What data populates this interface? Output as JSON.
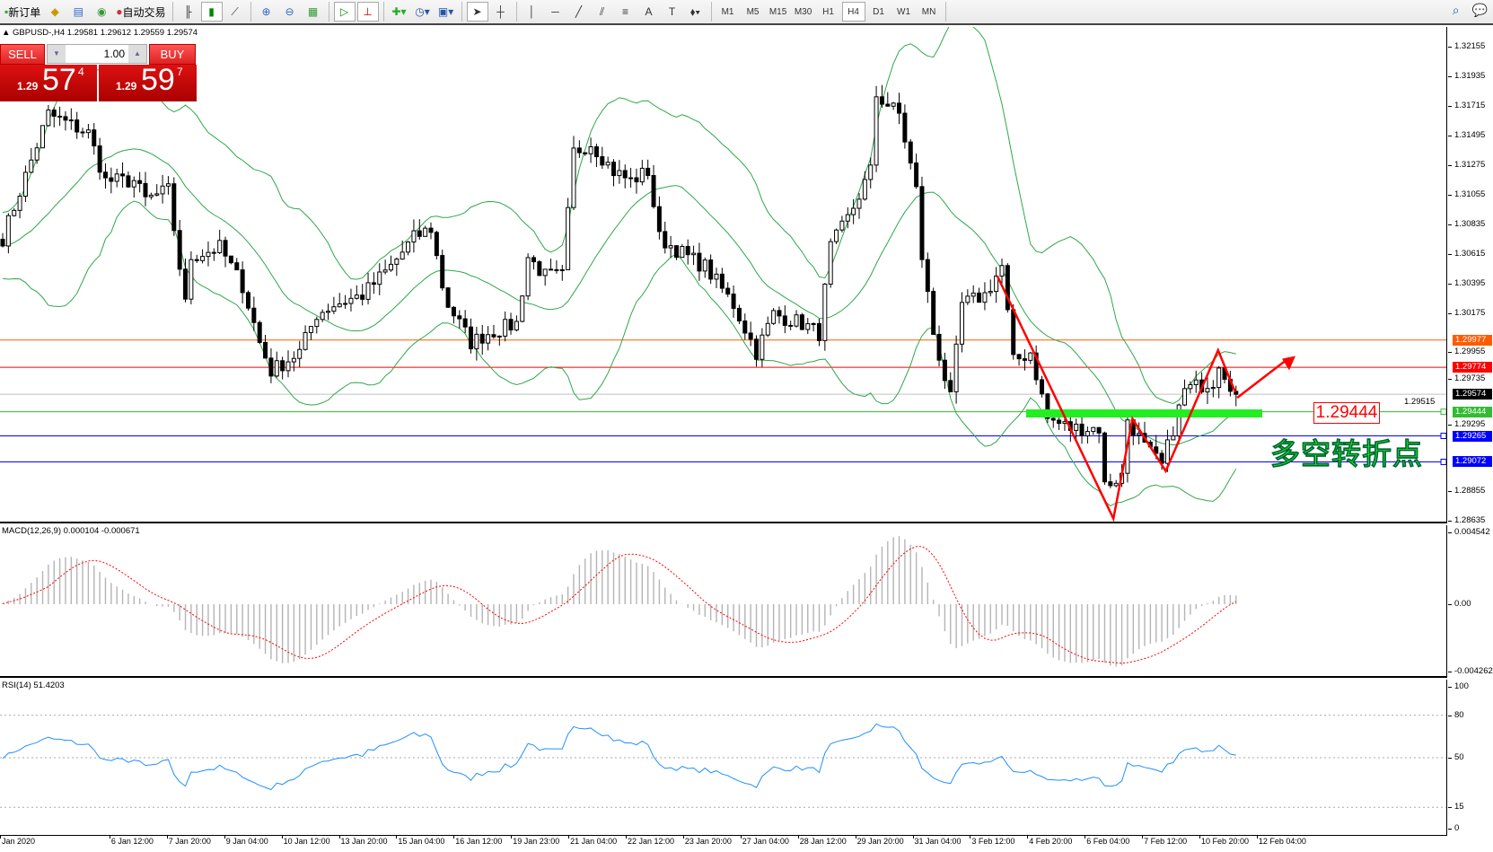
{
  "toolbar": {
    "new_order": "新订单",
    "auto_trading": "自动交易",
    "icons": [
      "metaeditor-icon",
      "market-watch-icon",
      "signals-icon",
      "bar-chart-icon",
      "candlestick-icon",
      "line-chart-icon",
      "zoom-in-icon",
      "zoom-out-icon",
      "tile-windows-icon",
      "auto-scroll-icon",
      "chart-shift-icon",
      "indicators-icon",
      "period-icon",
      "templates-icon",
      "cursor-icon",
      "crosshair-icon",
      "vertical-line-icon",
      "horizontal-line-icon",
      "trendline-icon",
      "equidistant-channel-icon",
      "fibonacci-icon",
      "text-icon",
      "text-label-icon",
      "arrows-icon"
    ],
    "timeframes": [
      "M1",
      "M5",
      "M15",
      "M30",
      "H1",
      "H4",
      "D1",
      "W1",
      "MN"
    ],
    "active_timeframe": "H4"
  },
  "chart": {
    "header": "GBPUSD-,H4  1.29581 1.29612 1.29559 1.29574",
    "trade_panel": {
      "sell_label": "SELL",
      "buy_label": "BUY",
      "volume": "1.00",
      "sell_prefix": "1.29",
      "sell_big": "57",
      "sell_sup": "4",
      "buy_prefix": "1.29",
      "buy_big": "59",
      "buy_sup": "7"
    },
    "price_labels": [
      "1.32155",
      "1.31935",
      "1.31715",
      "1.31495",
      "1.31275",
      "1.31055",
      "1.30835",
      "1.30615",
      "1.30395",
      "1.30175",
      "1.29955",
      "1.29735",
      "1.29515",
      "1.29295",
      "1.28855",
      "1.28635"
    ],
    "levels": [
      {
        "price": "1.29977",
        "color": "#ff5a00"
      },
      {
        "price": "1.29774",
        "color": "#ff0000"
      },
      {
        "price": "1.29574",
        "color": "#000000",
        "line": "#c0c0c0"
      },
      {
        "price": "1.29444",
        "color": "#33bb33"
      },
      {
        "price": "1.29265",
        "color": "#0000ff"
      },
      {
        "price": "1.29072",
        "color": "#0000ff"
      }
    ],
    "annotation_price": "1.29444",
    "annotation_text": "多空转折点",
    "time_labels": [
      "Jan 2020",
      "6 Jan 12:00",
      "7 Jan 20:00",
      "9 Jan 04:00",
      "10 Jan 12:00",
      "13 Jan 20:00",
      "15 Jan 04:00",
      "16 Jan 12:00",
      "19 Jan 23:00",
      "21 Jan 04:00",
      "22 Jan 12:00",
      "23 Jan 20:00",
      "27 Jan 04:00",
      "28 Jan 12:00",
      "29 Jan 20:00",
      "31 Jan 04:00",
      "3 Feb 12:00",
      "4 Feb 20:00",
      "6 Feb 04:00",
      "7 Feb 12:00",
      "10 Feb 20:00",
      "12 Feb 04:00"
    ]
  },
  "macd": {
    "title": "MACD(12,26,9) 0.000104 -0.000671",
    "max": "0.004542",
    "zero": "0.00",
    "min": "-0.004262"
  },
  "rsi": {
    "title": "RSI(14) 51.4203",
    "labels": [
      "100",
      "80",
      "50",
      "15",
      "0"
    ]
  },
  "chart_data": {
    "type": "candlestick",
    "symbol": "GBPUSD-",
    "timeframe": "H4",
    "ylim": [
      1.28635,
      1.32375
    ],
    "close_path": [
      [
        0,
        1.30735
      ],
      [
        8,
        1.31654
      ],
      [
        15,
        1.31512
      ],
      [
        18,
        1.31159
      ],
      [
        23,
        1.31159
      ],
      [
        25,
        1.31018
      ],
      [
        29,
        1.31088
      ],
      [
        32,
        1.3024
      ],
      [
        33,
        1.30594
      ],
      [
        38,
        1.30664
      ],
      [
        42,
        1.30382
      ],
      [
        45,
        1.29958
      ],
      [
        47,
        1.29746
      ],
      [
        52,
        1.29887
      ],
      [
        55,
        1.3017
      ],
      [
        58,
        1.3024
      ],
      [
        63,
        1.30311
      ],
      [
        68,
        1.30523
      ],
      [
        72,
        1.30735
      ],
      [
        75,
        1.30806
      ],
      [
        77,
        1.30382
      ],
      [
        78,
        1.3024
      ],
      [
        82,
        1.29958
      ],
      [
        85,
        1.30028
      ],
      [
        90,
        1.30099
      ],
      [
        92,
        1.30594
      ],
      [
        95,
        1.30452
      ],
      [
        98,
        1.30452
      ],
      [
        100,
        1.31371
      ],
      [
        103,
        1.31442
      ],
      [
        107,
        1.3123
      ],
      [
        110,
        1.31159
      ],
      [
        113,
        1.3123
      ],
      [
        115,
        1.30735
      ],
      [
        120,
        1.30594
      ],
      [
        123,
        1.30523
      ],
      [
        128,
        1.3024
      ],
      [
        132,
        1.29887
      ],
      [
        135,
        1.3017
      ],
      [
        140,
        1.30099
      ],
      [
        143,
        1.30028
      ],
      [
        145,
        1.30664
      ],
      [
        148,
        1.30876
      ],
      [
        152,
        1.3123
      ],
      [
        153,
        1.31795
      ],
      [
        157,
        1.31654
      ],
      [
        160,
        1.31088
      ],
      [
        161,
        1.30594
      ],
      [
        163,
        1.30028
      ],
      [
        166,
        1.29534
      ],
      [
        168,
        1.3024
      ],
      [
        172,
        1.30311
      ],
      [
        175,
        1.30523
      ],
      [
        177,
        1.29816
      ],
      [
        180,
        1.29887
      ],
      [
        183,
        1.29392
      ],
      [
        187,
        1.29322
      ],
      [
        192,
        1.29322
      ],
      [
        193,
        1.28897
      ],
      [
        196,
        1.28968
      ],
      [
        197,
        1.29392
      ],
      [
        200,
        1.2918
      ],
      [
        203,
        1.29039
      ],
      [
        205,
        1.29322
      ],
      [
        207,
        1.29604
      ],
      [
        212,
        1.29675
      ],
      [
        213,
        1.29816
      ],
      [
        216,
        1.29574
      ]
    ],
    "indicators": [
      "Bollinger Bands(20,2)",
      "MACD(12,26,9)",
      "RSI(14)"
    ],
    "colors": {
      "bands": "#2ea84a",
      "macd_hist": "#b4b4b4",
      "macd_signal": "#ff0000",
      "rsi": "#1e90ff",
      "arrows": "#ff0000",
      "support_zone": "#22ee22"
    }
  }
}
